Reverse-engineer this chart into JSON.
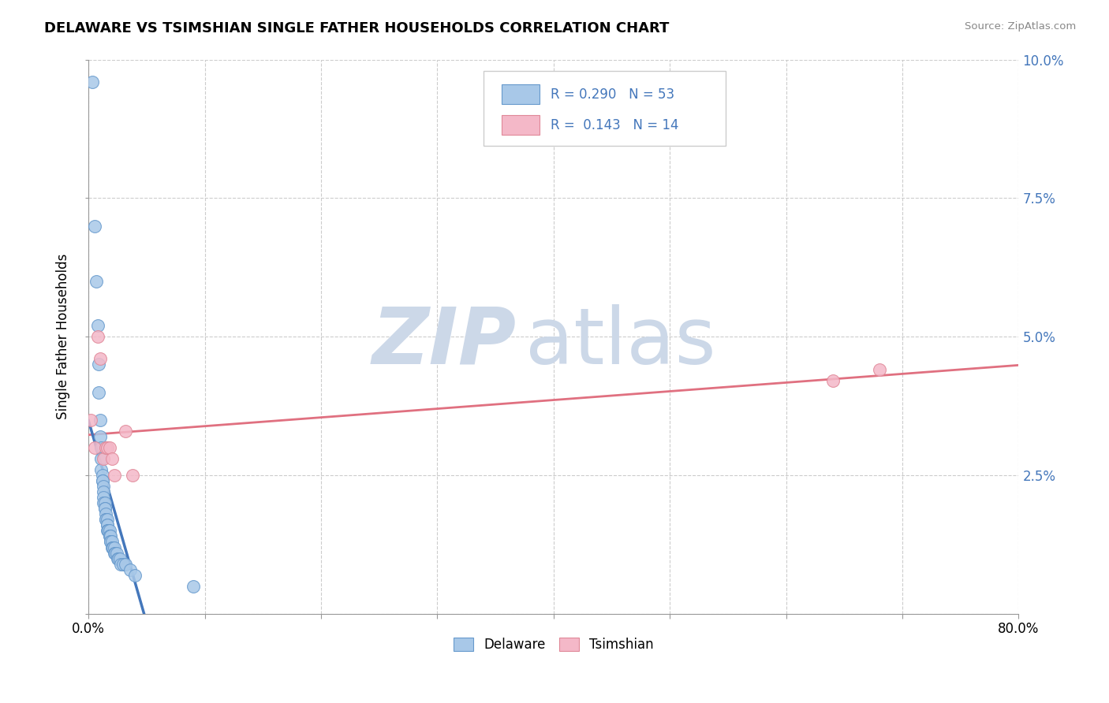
{
  "title": "DELAWARE VS TSIMSHIAN SINGLE FATHER HOUSEHOLDS CORRELATION CHART",
  "source": "Source: ZipAtlas.com",
  "ylabel": "Single Father Households",
  "xlim": [
    0,
    0.8
  ],
  "ylim": [
    0,
    0.1
  ],
  "xticks": [
    0.0,
    0.1,
    0.2,
    0.3,
    0.4,
    0.5,
    0.6,
    0.7,
    0.8
  ],
  "xticklabels_bottom": [
    "0.0%",
    "",
    "",
    "",
    "",
    "",
    "",
    "",
    "80.0%"
  ],
  "yticks": [
    0.0,
    0.025,
    0.05,
    0.075,
    0.1
  ],
  "yticklabels_right": [
    "",
    "2.5%",
    "5.0%",
    "7.5%",
    "10.0%"
  ],
  "delaware_color": "#a8c8e8",
  "tsimshian_color": "#f4b8c8",
  "delaware_edge_color": "#6699cc",
  "tsimshian_edge_color": "#e08898",
  "delaware_line_color": "#4477bb",
  "tsimshian_line_color": "#e07080",
  "dashed_line_color": "#88aad4",
  "R_delaware": 0.29,
  "N_delaware": 53,
  "R_tsimshian": 0.143,
  "N_tsimshian": 14,
  "legend_color": "#4477bb",
  "watermark_zip": "ZIP",
  "watermark_atlas": "atlas",
  "watermark_color": "#ccd8e8",
  "delaware_x": [
    0.003,
    0.005,
    0.007,
    0.008,
    0.009,
    0.009,
    0.01,
    0.01,
    0.011,
    0.011,
    0.011,
    0.012,
    0.012,
    0.012,
    0.013,
    0.013,
    0.013,
    0.013,
    0.014,
    0.014,
    0.014,
    0.015,
    0.015,
    0.015,
    0.016,
    0.016,
    0.016,
    0.016,
    0.017,
    0.017,
    0.018,
    0.018,
    0.018,
    0.019,
    0.019,
    0.019,
    0.02,
    0.02,
    0.021,
    0.021,
    0.022,
    0.022,
    0.023,
    0.024,
    0.025,
    0.026,
    0.027,
    0.028,
    0.03,
    0.032,
    0.036,
    0.04,
    0.09
  ],
  "delaware_y": [
    0.096,
    0.07,
    0.06,
    0.052,
    0.045,
    0.04,
    0.035,
    0.032,
    0.03,
    0.028,
    0.026,
    0.025,
    0.024,
    0.024,
    0.023,
    0.022,
    0.021,
    0.02,
    0.02,
    0.019,
    0.019,
    0.018,
    0.017,
    0.017,
    0.017,
    0.016,
    0.016,
    0.015,
    0.015,
    0.015,
    0.015,
    0.014,
    0.014,
    0.014,
    0.013,
    0.013,
    0.013,
    0.012,
    0.012,
    0.012,
    0.012,
    0.011,
    0.011,
    0.011,
    0.01,
    0.01,
    0.01,
    0.009,
    0.009,
    0.009,
    0.008,
    0.007,
    0.005
  ],
  "tsimshian_x": [
    0.002,
    0.005,
    0.008,
    0.01,
    0.013,
    0.015,
    0.016,
    0.018,
    0.02,
    0.022,
    0.032,
    0.038,
    0.64,
    0.68
  ],
  "tsimshian_y": [
    0.035,
    0.03,
    0.05,
    0.046,
    0.028,
    0.03,
    0.03,
    0.03,
    0.028,
    0.025,
    0.033,
    0.025,
    0.042,
    0.044
  ],
  "minor_xticks": [
    0.05,
    0.15,
    0.25,
    0.35,
    0.45,
    0.55,
    0.65,
    0.75
  ]
}
